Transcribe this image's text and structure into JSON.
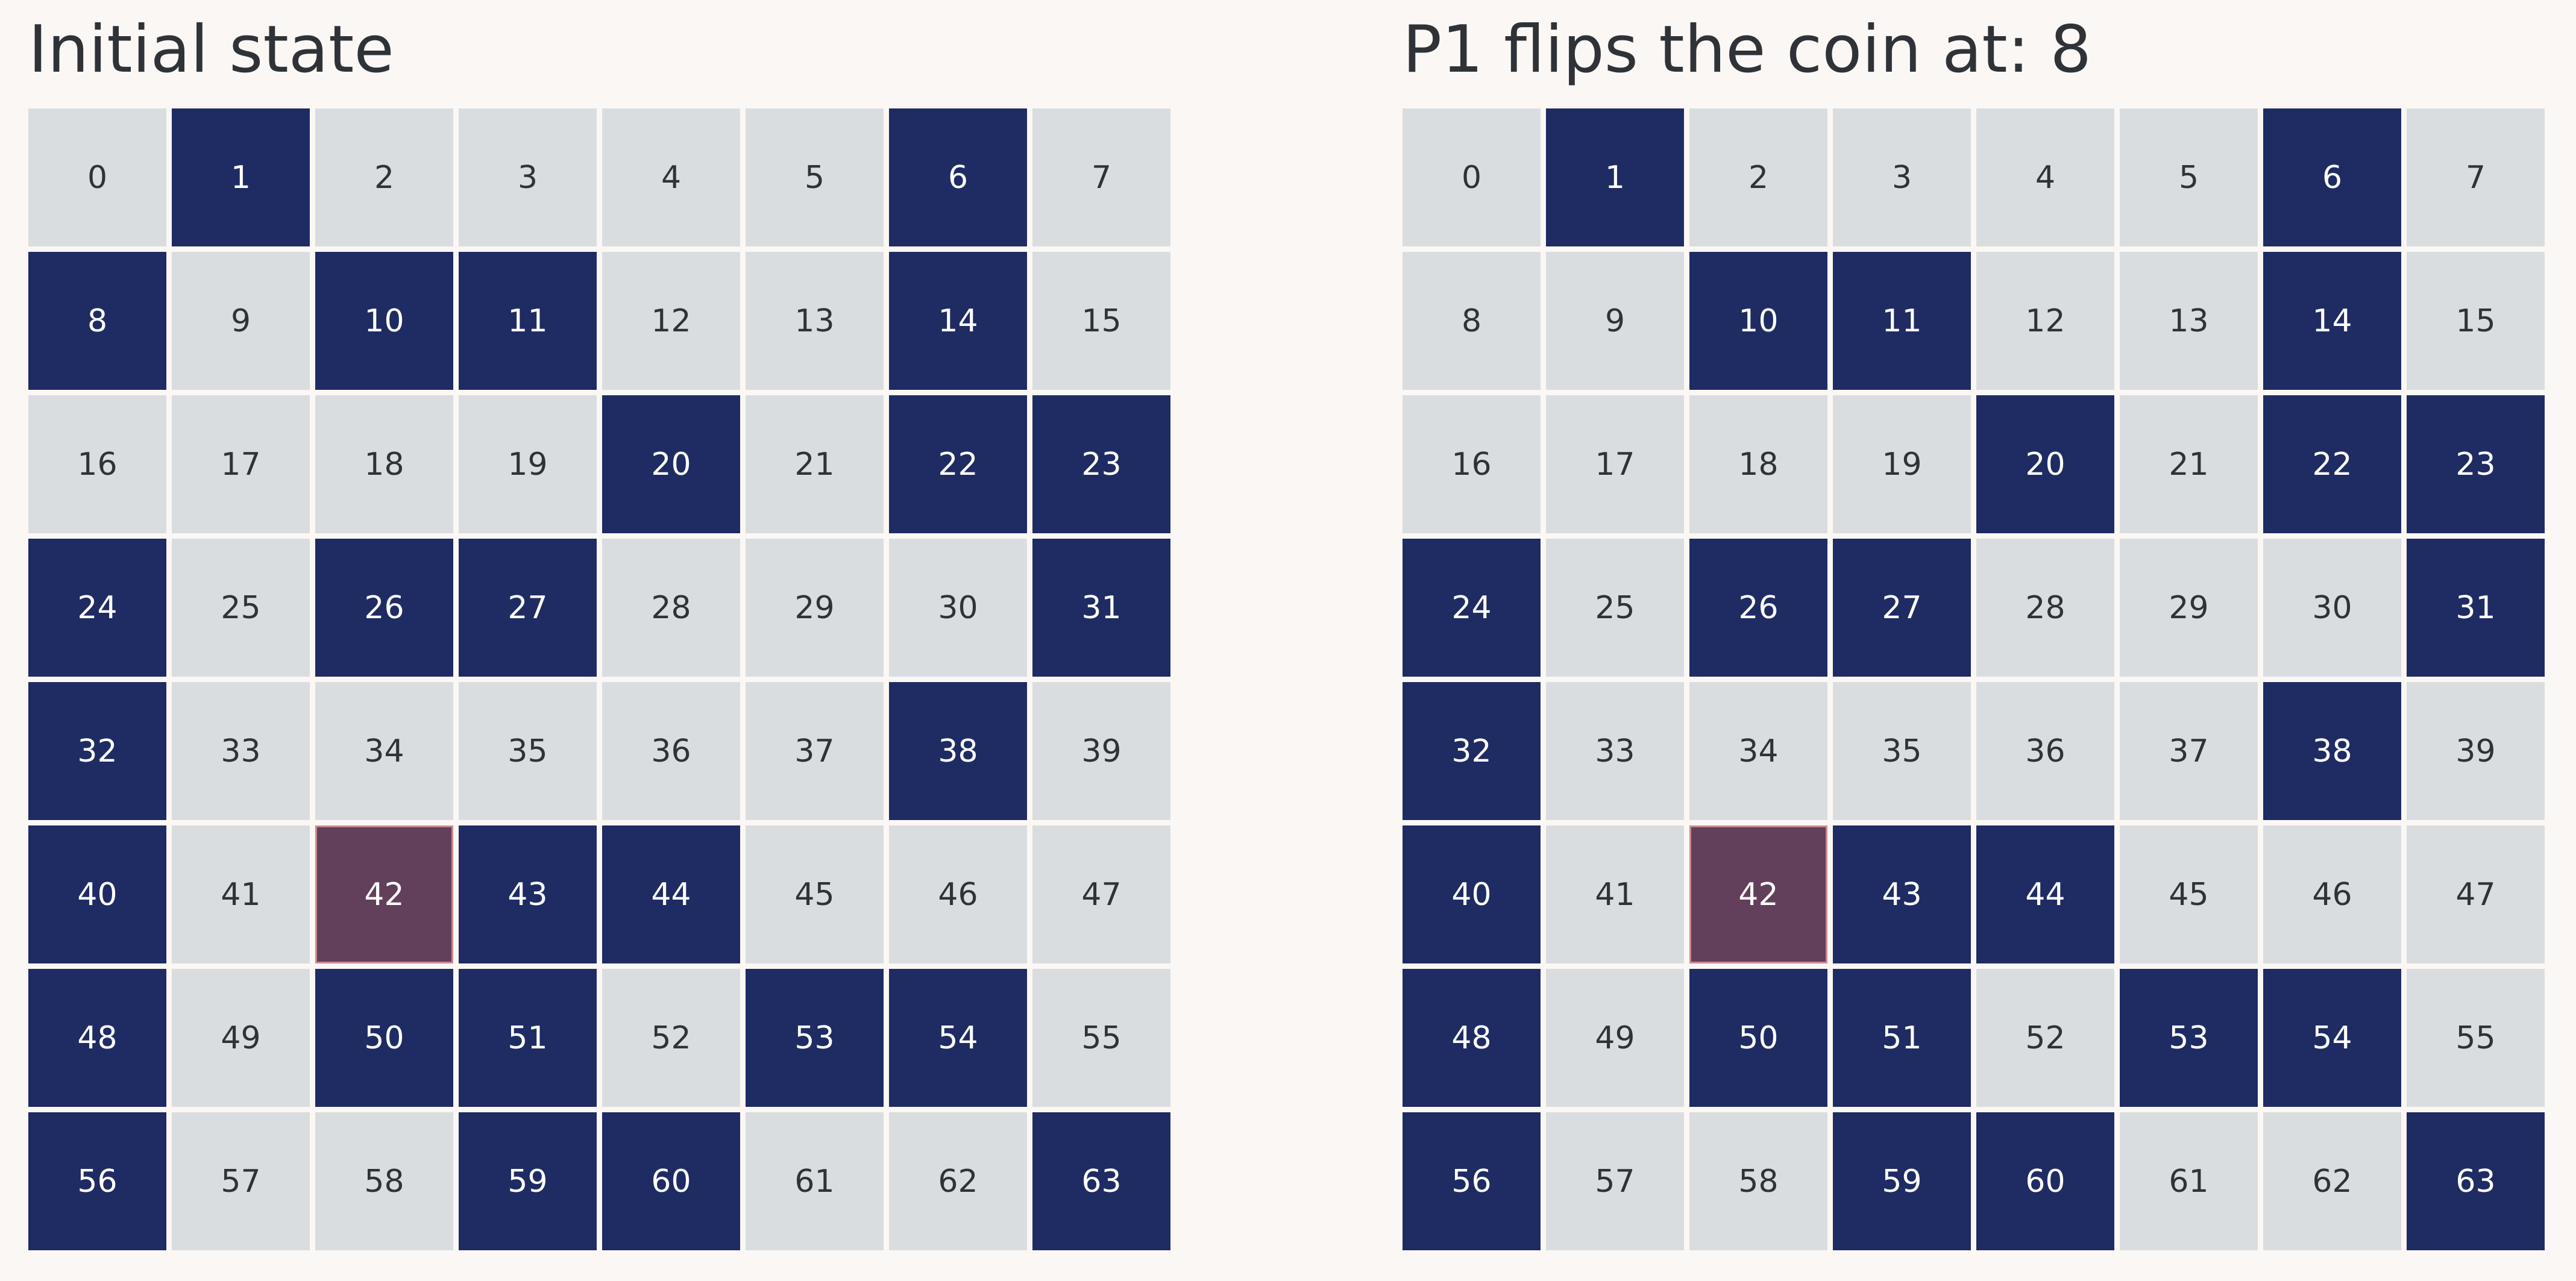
{
  "colors": {
    "background": "#fbf7f4",
    "heads": "#1f2b63",
    "tails": "#dadde0",
    "key": "#623f5a",
    "key_border": "#c98a8f",
    "text_dark": "#2f3338",
    "text_light": "#ffffff"
  },
  "panels": [
    {
      "title": "Initial state",
      "key_cell": 42,
      "heads": [
        1,
        6,
        8,
        10,
        11,
        14,
        20,
        22,
        23,
        24,
        26,
        27,
        31,
        32,
        38,
        40,
        43,
        44,
        48,
        50,
        51,
        53,
        54,
        56,
        59,
        60,
        63
      ]
    },
    {
      "title": "P1 flips the coin at: 8",
      "key_cell": 42,
      "heads": [
        1,
        6,
        10,
        11,
        14,
        20,
        22,
        23,
        24,
        26,
        27,
        31,
        32,
        38,
        40,
        43,
        44,
        48,
        50,
        51,
        53,
        54,
        56,
        59,
        60,
        63
      ]
    }
  ]
}
